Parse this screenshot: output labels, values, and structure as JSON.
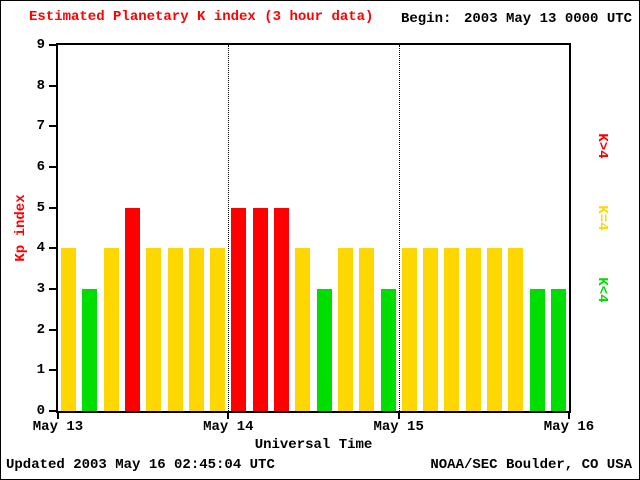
{
  "header": {
    "title": "Estimated Planetary K index (3 hour data)",
    "begin_label": "Begin:",
    "begin_value": "2003 May 13 0000 UTC"
  },
  "footer": {
    "updated": "Updated 2003 May 16 02:45:04 UTC",
    "source": "NOAA/SEC Boulder, CO USA"
  },
  "legend": [
    {
      "label": "K>4",
      "color": "#ff0000"
    },
    {
      "label": "K=4",
      "color": "#ffd700"
    },
    {
      "label": "K<4",
      "color": "#00dd00"
    }
  ],
  "colors": {
    "accent_red": "#ff0000",
    "bar_high": "#ff0000",
    "bar_mid": "#ffd700",
    "bar_low": "#00dd00"
  },
  "chart_data": {
    "type": "bar",
    "title": "Estimated Planetary K index (3 hour data)",
    "xlabel": "Universal Time",
    "ylabel": "Kp index",
    "ylim": [
      0,
      9
    ],
    "y_ticks": [
      0,
      1,
      2,
      3,
      4,
      5,
      6,
      7,
      8,
      9
    ],
    "x_ticks": [
      "May 13",
      "May 14",
      "May 15",
      "May 16"
    ],
    "bin_hours": 3,
    "values": [
      4,
      3,
      4,
      5,
      4,
      4,
      4,
      4,
      5,
      5,
      5,
      4,
      3,
      4,
      4,
      3,
      4,
      4,
      4,
      4,
      4,
      4,
      3,
      3
    ],
    "series": [
      {
        "name": "May 13",
        "values": [
          4,
          3,
          4,
          5,
          4,
          4,
          4,
          4
        ]
      },
      {
        "name": "May 14",
        "values": [
          5,
          5,
          5,
          4,
          3,
          4,
          4,
          3
        ]
      },
      {
        "name": "May 15",
        "values": [
          4,
          4,
          4,
          4,
          4,
          4,
          3,
          3
        ]
      }
    ],
    "color_rule": {
      "above_4": "#ff0000",
      "equal_4": "#ffd700",
      "below_4": "#00dd00"
    },
    "legend_position": "right",
    "grid": "vertical dotted lines at day boundaries"
  }
}
